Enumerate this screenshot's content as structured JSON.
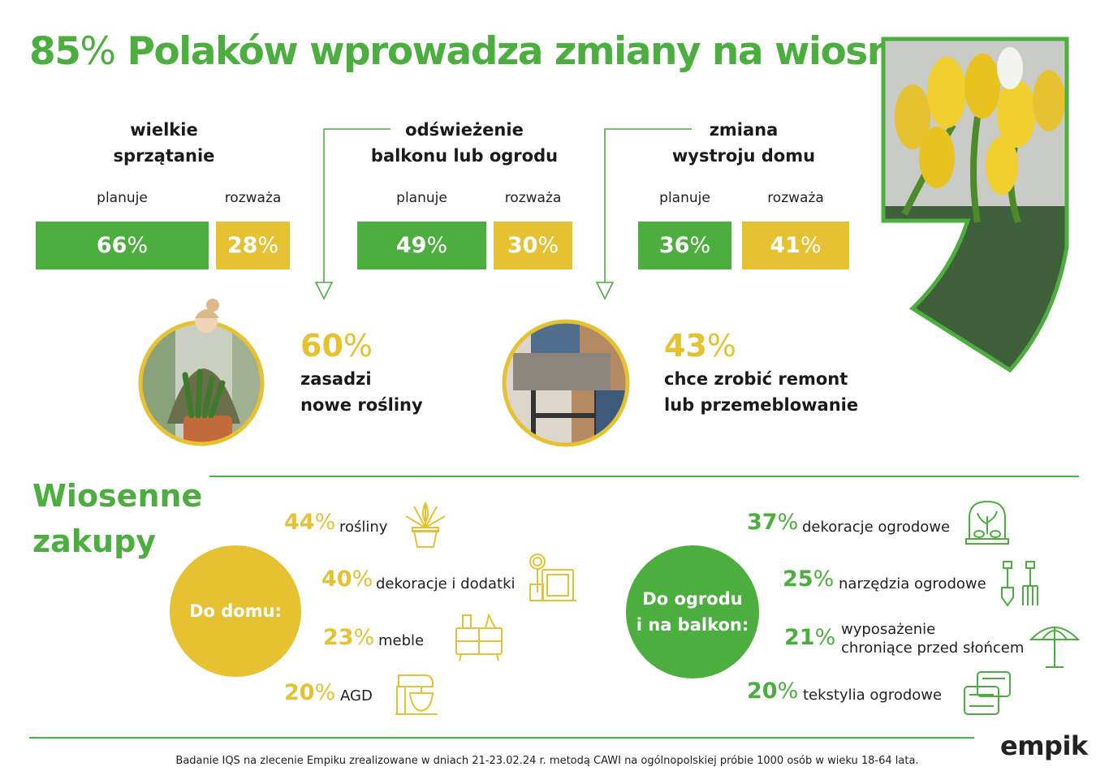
{
  "title": {
    "number": "85",
    "pct": "%",
    "text": " Polaków wprowadza zmiany na wiosnę"
  },
  "colors": {
    "green": "#4cae3f",
    "yellow": "#e6c232"
  },
  "chart_data": {
    "type": "bar",
    "categories": [
      "wielkie sprzątanie",
      "odświeżenie balkonu lub ogrodu",
      "zmiana wystroju domu"
    ],
    "series": [
      {
        "name": "planuje",
        "values": [
          66,
          49,
          36
        ]
      },
      {
        "name": "rozważa",
        "values": [
          28,
          30,
          41
        ]
      }
    ]
  },
  "groups": [
    {
      "title": "wielkie\nsprzątanie",
      "plan_label": "planuje",
      "consider_label": "rozważa",
      "plan_value": "66",
      "consider_value": "28"
    },
    {
      "title": "odświeżenie\nbalkonu lub ogrodu",
      "plan_label": "planuje",
      "consider_label": "rozważa",
      "plan_value": "49",
      "consider_value": "30"
    },
    {
      "title": "zmiana\nwystroju domu",
      "plan_label": "planuje",
      "consider_label": "rozważa",
      "plan_value": "36",
      "consider_value": "41"
    }
  ],
  "percent_sign": "%",
  "highlights": [
    {
      "value": "60",
      "text": "zasadzi\nnowe rośliny",
      "photo": "woman-planting-photo"
    },
    {
      "value": "43",
      "text": "chce zrobić remont\nlub przemeblowanie",
      "photo": "moving-furniture-photo"
    }
  ],
  "tulip_photo": "yellow-tulips-photo",
  "section_title": "Wiosenne\nzakupy",
  "home": {
    "label": "Do domu:",
    "items": [
      {
        "value": "44",
        "label": "rośliny",
        "icon": "potted-plant-icon"
      },
      {
        "value": "40",
        "label": "dekoracje i dodatki",
        "icon": "picture-frame-icon"
      },
      {
        "value": "23",
        "label": "meble",
        "icon": "dresser-icon"
      },
      {
        "value": "20",
        "label": "AGD",
        "icon": "stand-mixer-icon"
      }
    ]
  },
  "garden": {
    "label": "Do ogrodu\ni na balkon:",
    "items": [
      {
        "value": "37",
        "label": "dekoracje ogrodowe",
        "icon": "terrarium-icon"
      },
      {
        "value": "25",
        "label": "narzędzia ogrodowe",
        "icon": "garden-tools-icon"
      },
      {
        "value": "21",
        "label": "wyposażenie\nchroniące przed słońcem",
        "icon": "umbrella-icon"
      },
      {
        "value": "20",
        "label": "tekstylia ogrodowe",
        "icon": "cushions-icon"
      }
    ]
  },
  "footnote": "Badanie IQS na zlecenie Empiku zrealizowane w dniach 21-23.02.24 r. metodą CAWI na ogólnopolskiej próbie 1000 osób w wieku 18-64 lata.",
  "logo": "empik"
}
